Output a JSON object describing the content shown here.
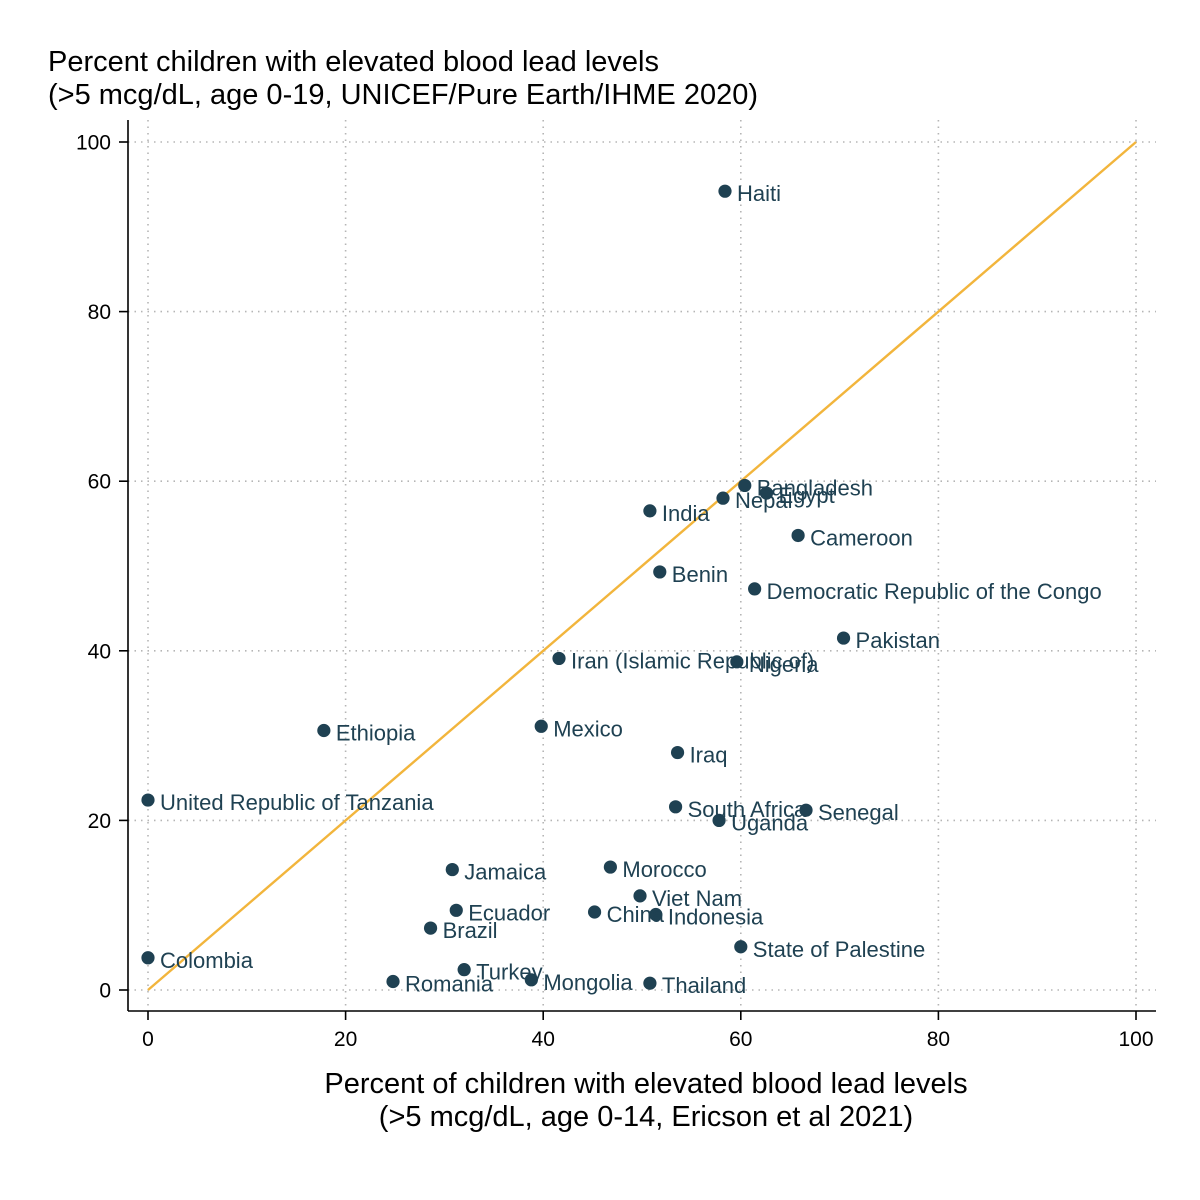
{
  "chart_data": {
    "type": "scatter",
    "title": "Percent children with elevated blood lead levels",
    "subtitle": "(>5 mcg/dL, age 0-19, UNICEF/Pure Earth/IHME 2020)",
    "xlabel": "Percent of children with elevated blood lead levels",
    "xlabel_sub": "(>5 mcg/dL, age 0-14, Ericson et al 2021)",
    "xlim": [
      0,
      100
    ],
    "ylim": [
      0,
      100
    ],
    "xticks": [
      "0",
      "20",
      "40",
      "60",
      "80",
      "100"
    ],
    "yticks": [
      "0",
      "20",
      "40",
      "60",
      "80",
      "100"
    ],
    "grid": true,
    "reference_line": {
      "from": [
        0,
        0
      ],
      "to": [
        100,
        100
      ],
      "color": "#f2b53c"
    },
    "marker_color": "#1f4152",
    "points": [
      {
        "label": "Haiti",
        "x": 58.4,
        "y": 94.2
      },
      {
        "label": "Bangladesh",
        "x": 60.4,
        "y": 59.5
      },
      {
        "label": "Egypt",
        "x": 62.6,
        "y": 58.6
      },
      {
        "label": "Nepal",
        "x": 58.2,
        "y": 58.0
      },
      {
        "label": "India",
        "x": 50.8,
        "y": 56.5
      },
      {
        "label": "Cameroon",
        "x": 65.8,
        "y": 53.6
      },
      {
        "label": "Benin",
        "x": 51.8,
        "y": 49.3
      },
      {
        "label": "Democratic Republic of the Congo",
        "x": 61.4,
        "y": 47.3
      },
      {
        "label": "Pakistan",
        "x": 70.4,
        "y": 41.5
      },
      {
        "label": "Iran (Islamic Republic of)",
        "x": 41.6,
        "y": 39.1
      },
      {
        "label": "Nigeria",
        "x": 59.6,
        "y": 38.7
      },
      {
        "label": "Ethiopia",
        "x": 17.8,
        "y": 30.6
      },
      {
        "label": "Mexico",
        "x": 39.8,
        "y": 31.1
      },
      {
        "label": "Iraq",
        "x": 53.6,
        "y": 28.0
      },
      {
        "label": "United Republic of Tanzania",
        "x": 0.0,
        "y": 22.4
      },
      {
        "label": "South Africa",
        "x": 53.4,
        "y": 21.6
      },
      {
        "label": "Senegal",
        "x": 66.6,
        "y": 21.2
      },
      {
        "label": "Uganda",
        "x": 57.8,
        "y": 20.0
      },
      {
        "label": "Jamaica",
        "x": 30.8,
        "y": 14.2
      },
      {
        "label": "Morocco",
        "x": 46.8,
        "y": 14.5
      },
      {
        "label": "Viet Nam",
        "x": 49.8,
        "y": 11.1
      },
      {
        "label": "Ecuador",
        "x": 31.2,
        "y": 9.4
      },
      {
        "label": "China",
        "x": 45.2,
        "y": 9.2
      },
      {
        "label": "Indonesia",
        "x": 51.4,
        "y": 8.9
      },
      {
        "label": "Brazil",
        "x": 28.6,
        "y": 7.3
      },
      {
        "label": "State of Palestine",
        "x": 60.0,
        "y": 5.1
      },
      {
        "label": "Colombia",
        "x": 0.0,
        "y": 3.8
      },
      {
        "label": "Turkey",
        "x": 32.0,
        "y": 2.4
      },
      {
        "label": "Romania",
        "x": 24.8,
        "y": 1.0
      },
      {
        "label": "Mongolia",
        "x": 38.8,
        "y": 1.2
      },
      {
        "label": "Thailand",
        "x": 50.8,
        "y": 0.8
      }
    ]
  }
}
